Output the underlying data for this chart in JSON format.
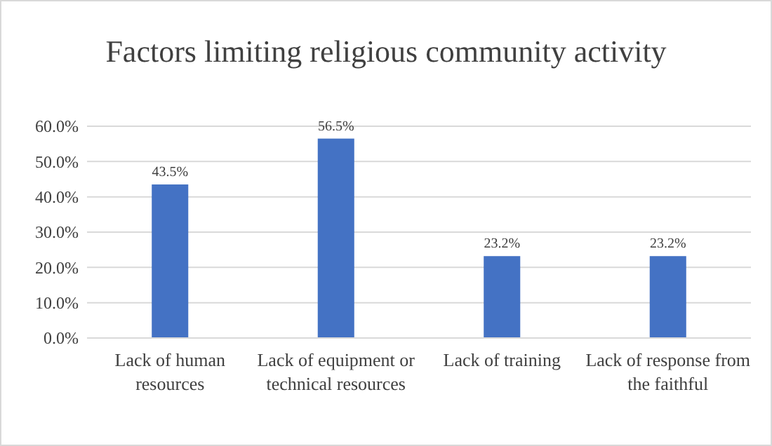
{
  "chart_data": {
    "type": "bar",
    "title": "Factors limiting religious community activity",
    "categories": [
      "Lack of human resources",
      "Lack of equipment or technical resources",
      "Lack of training",
      "Lack of response from the faithful"
    ],
    "values": [
      43.5,
      56.5,
      23.2,
      23.2
    ],
    "color": "#4472c4",
    "value_labels": [
      "43.5%",
      "56.5%",
      "23.2%",
      "23.2%"
    ],
    "ylim": [
      0,
      60
    ],
    "yticks": [
      {
        "value": 0,
        "label": "0.0%"
      },
      {
        "value": 10,
        "label": "10.0%"
      },
      {
        "value": 20,
        "label": "20.0%"
      },
      {
        "value": 30,
        "label": "30.0%"
      },
      {
        "value": 40,
        "label": "40.0%"
      },
      {
        "value": 50,
        "label": "50.0%"
      },
      {
        "value": 60,
        "label": "60.0%"
      }
    ],
    "grid": "y"
  }
}
